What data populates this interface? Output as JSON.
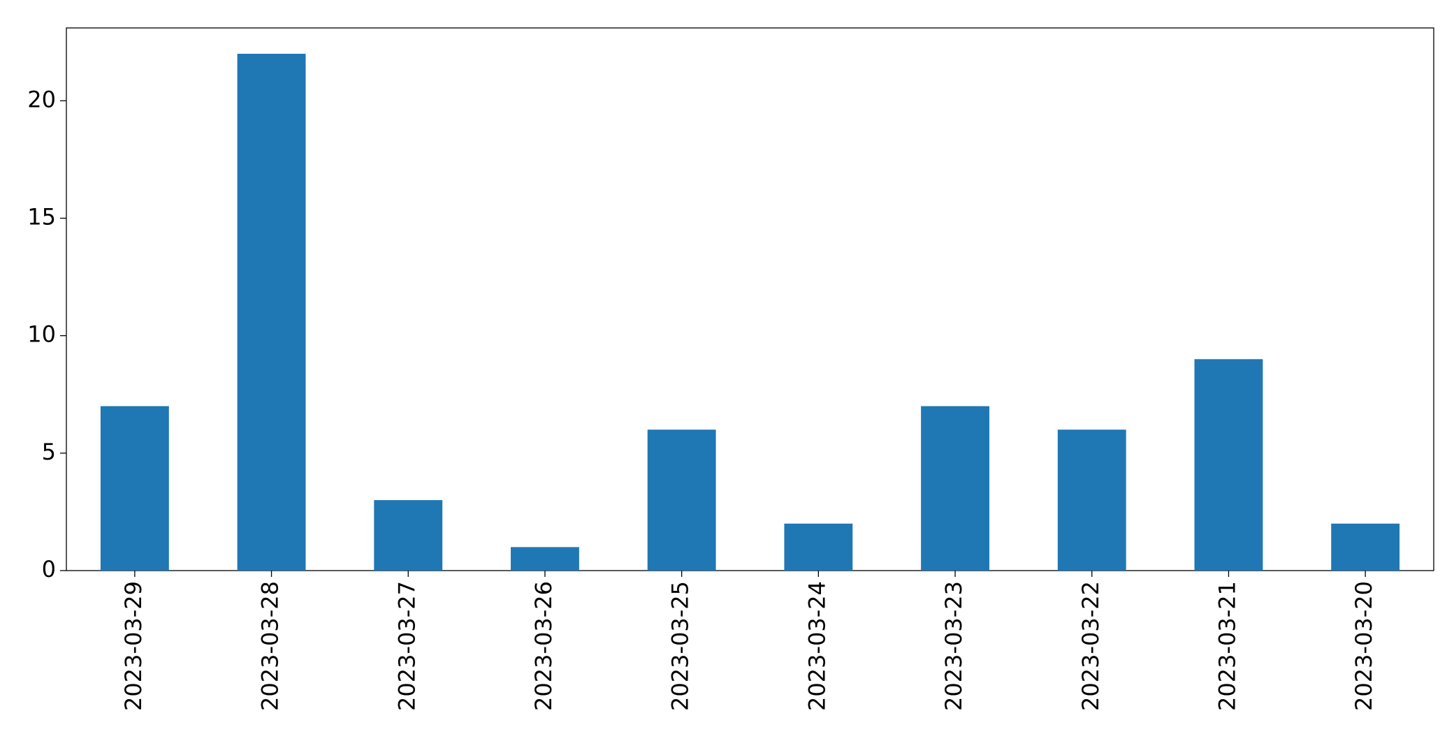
{
  "chart_data": {
    "type": "bar",
    "categories": [
      "2023-03-29",
      "2023-03-28",
      "2023-03-27",
      "2023-03-26",
      "2023-03-25",
      "2023-03-24",
      "2023-03-23",
      "2023-03-22",
      "2023-03-21",
      "2023-03-20"
    ],
    "values": [
      7,
      22,
      3,
      1,
      6,
      2,
      7,
      6,
      9,
      2
    ],
    "color": "#1f77b4",
    "ylim": [
      0,
      23.1
    ],
    "yticks": [
      0,
      5,
      10,
      15,
      20
    ],
    "grid": false
  }
}
